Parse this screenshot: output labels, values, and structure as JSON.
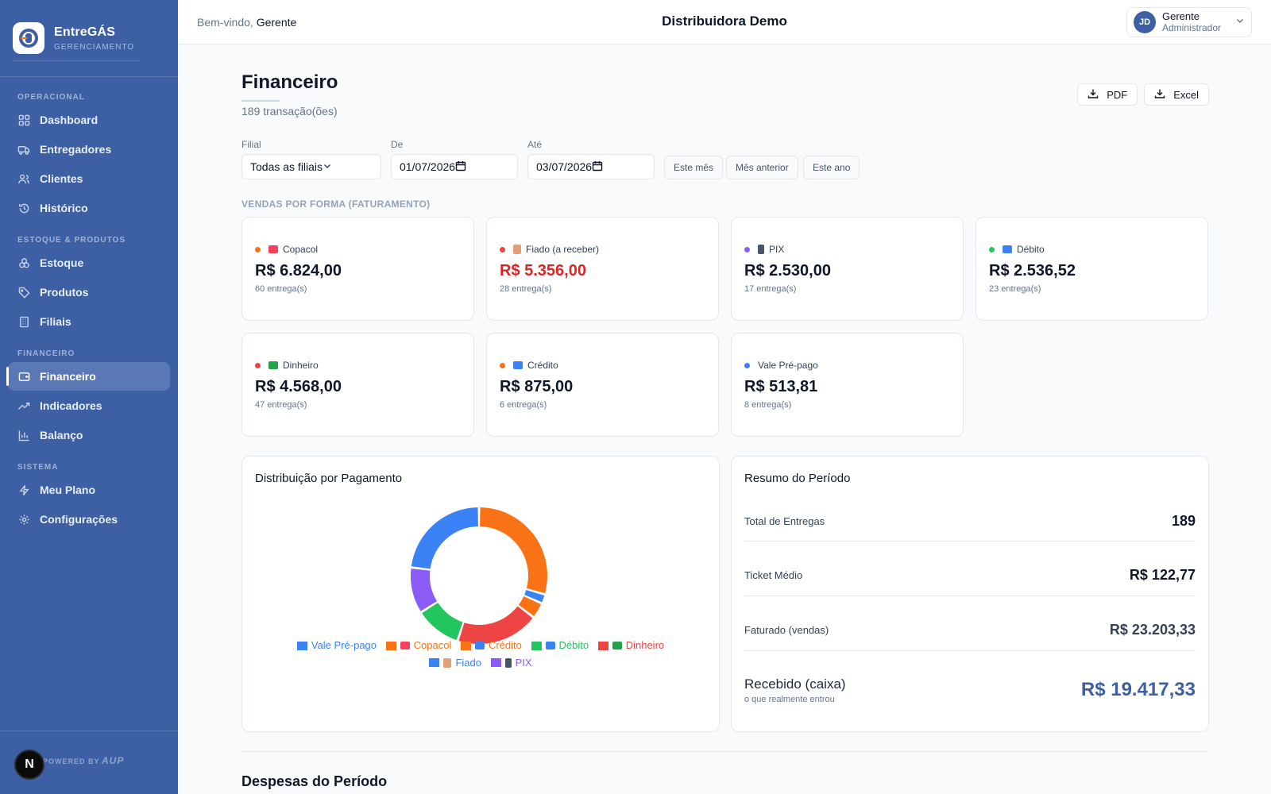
{
  "brand": {
    "name": "EntreGÁS",
    "subtitle": "GERENCIAMENTO"
  },
  "sidebar": {
    "sections": [
      {
        "title": "OPERACIONAL",
        "items": [
          {
            "label": "Dashboard",
            "icon": "grid-icon"
          },
          {
            "label": "Entregadores",
            "icon": "truck-icon"
          },
          {
            "label": "Clientes",
            "icon": "users-icon"
          },
          {
            "label": "Histórico",
            "icon": "history-icon"
          }
        ]
      },
      {
        "title": "ESTOQUE & PRODUTOS",
        "items": [
          {
            "label": "Estoque",
            "icon": "boxes-icon"
          },
          {
            "label": "Produtos",
            "icon": "tag-icon"
          },
          {
            "label": "Filiais",
            "icon": "building-icon"
          }
        ]
      },
      {
        "title": "FINANCEIRO",
        "items": [
          {
            "label": "Financeiro",
            "icon": "wallet-icon",
            "active": true
          },
          {
            "label": "Indicadores",
            "icon": "trending-up-icon"
          },
          {
            "label": "Balanço",
            "icon": "bar-chart-icon"
          }
        ]
      },
      {
        "title": "SISTEMA",
        "items": [
          {
            "label": "Meu Plano",
            "icon": "zap-icon"
          },
          {
            "label": "Configurações",
            "icon": "gear-icon"
          }
        ]
      }
    ],
    "footer": {
      "powered": "POWERED BY",
      "logo": "AUP"
    },
    "badge": "N"
  },
  "header": {
    "welcome_prefix": "Bem-vindo,",
    "welcome_name": "Gerente",
    "company": "Distribuidora Demo",
    "user": {
      "initials": "JD",
      "name": "Gerente",
      "role": "Administrador"
    }
  },
  "page": {
    "title": "Financeiro",
    "count": "189 transação(ões)",
    "export": {
      "pdf": "PDF",
      "excel": "Excel"
    }
  },
  "filters": {
    "filial": {
      "label": "Filial",
      "value": "Todas as filiais"
    },
    "de": {
      "label": "De",
      "value": "01/07/2026"
    },
    "ate": {
      "label": "Até",
      "value": "03/07/2026"
    },
    "chips": [
      "Este mês",
      "Mês anterior",
      "Este ano"
    ]
  },
  "sales": {
    "caption": "VENDAS POR FORMA (FATURAMENTO)",
    "cards": [
      {
        "label": "Copacol",
        "value": "R$ 6.824,00",
        "sub": "60 entrega(s)",
        "dot": "#f97316",
        "icon_color": "#f43f5e",
        "red": false
      },
      {
        "label": "Fiado (a receber)",
        "value": "R$ 5.356,00",
        "sub": "28 entrega(s)",
        "dot": "#ef4444",
        "icon_color": "#e2a07a",
        "red": true
      },
      {
        "label": "PIX",
        "value": "R$ 2.530,00",
        "sub": "17 entrega(s)",
        "dot": "#8b5cf6",
        "icon_color": "#475569",
        "red": false
      },
      {
        "label": "Débito",
        "value": "R$ 2.536,52",
        "sub": "23 entrega(s)",
        "dot": "#22c55e",
        "icon_color": "#3b82f6",
        "red": false
      },
      {
        "label": "Dinheiro",
        "value": "R$ 4.568,00",
        "sub": "47 entrega(s)",
        "dot": "#ef4444",
        "icon_color": "#22a34a",
        "red": false
      },
      {
        "label": "Crédito",
        "value": "R$ 875,00",
        "sub": "6 entrega(s)",
        "dot": "#f97316",
        "icon_color": "#3b82f6",
        "red": false
      },
      {
        "label": "Vale Pré-pago",
        "value": "R$ 513,81",
        "sub": "8 entrega(s)",
        "dot": "#3b82f6",
        "icon_color": "",
        "red": false
      }
    ]
  },
  "distribution": {
    "title": "Distribuição por Pagamento",
    "legend": [
      {
        "label": "Vale Pré-pago",
        "color": "#3b82f6",
        "icon_color": ""
      },
      {
        "label": "Copacol",
        "color": "#f97316",
        "icon_color": "#f43f5e"
      },
      {
        "label": "Crédito",
        "color": "#f97316",
        "icon_color": "#3b82f6"
      },
      {
        "label": "Débito",
        "color": "#22c55e",
        "icon_color": "#3b82f6"
      },
      {
        "label": "Dinheiro",
        "color": "#ef4444",
        "icon_color": "#22a34a"
      },
      {
        "label": "Fiado",
        "color": "#3b82f6",
        "icon_color": "#e2a07a"
      },
      {
        "label": "PIX",
        "color": "#8b5cf6",
        "icon_color": "#475569"
      }
    ]
  },
  "chart_data": {
    "type": "pie",
    "categories": [
      "Copacol",
      "Vale Pré-pago",
      "Crédito",
      "Dinheiro",
      "Débito",
      "PIX",
      "Fiado"
    ],
    "values": [
      6824.0,
      513.81,
      875.0,
      4568.0,
      2536.52,
      2530.0,
      5356.0
    ],
    "colors": [
      "#f97316",
      "#3b82f6",
      "#f97316",
      "#ef4444",
      "#22c55e",
      "#8b5cf6",
      "#3b82f6"
    ],
    "donut": true,
    "legend_position": "bottom",
    "title": "Distribuição por Pagamento"
  },
  "summary": {
    "title": "Resumo do Período",
    "rows": [
      {
        "label": "Total de Entregas",
        "value": "189"
      },
      {
        "label": "Ticket Médio",
        "value": "R$ 122,77"
      },
      {
        "label": "Faturado (vendas)",
        "value": "R$ 23.203,33"
      }
    ],
    "received": {
      "label": "Recebido (caixa)",
      "sub": "o que realmente entrou",
      "value": "R$ 19.417,33"
    }
  },
  "expenses": {
    "title": "Despesas do Período"
  }
}
